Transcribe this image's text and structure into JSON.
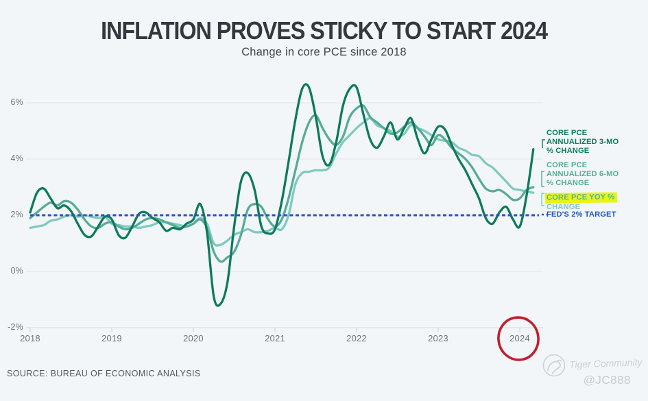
{
  "header": {
    "title": "INFLATION PROVES STICKY TO START 2024",
    "subtitle": "Change in core PCE since 2018"
  },
  "footer": {
    "source": "SOURCE: BUREAU OF ECONOMIC ANALYSIS"
  },
  "watermark": {
    "community": "Tiger Community",
    "handle": "@JC888"
  },
  "legend": {
    "core3mo": {
      "l1": "CORE PCE",
      "l2": "ANNUALIZED 3-MO",
      "l3": "% CHANGE",
      "color": "#0d7a5b"
    },
    "core6mo": {
      "l1": "CORE PCE",
      "l2": "ANNUALIZED 6-MO",
      "l3": "% CHANGE",
      "color": "#57ab99"
    },
    "coreyoy": {
      "l1": "CORE PCE YOY %",
      "l2": "CHANGE",
      "color": "#7ecac0",
      "highlight_color": "#e9f411"
    },
    "fedtarget": {
      "label": "FED'S 2% TARGET",
      "color": "#2356c0"
    }
  },
  "chart_data": {
    "type": "line",
    "title": "INFLATION PROVES STICKY TO START 2024",
    "subtitle": "Change in core PCE since 2018",
    "x_unit": "month",
    "x_start": "2018-01",
    "x_end": "2024-03",
    "x_ticks": [
      "2018",
      "2019",
      "2020",
      "2021",
      "2022",
      "2023",
      "2024"
    ],
    "y_ticks": [
      "6%",
      "4%",
      "2%",
      "0%",
      "-2%"
    ],
    "y_tick_values": [
      6,
      4,
      2,
      0,
      -2
    ],
    "ylim": [
      -2.2,
      7
    ],
    "grid": true,
    "legend_position": "right",
    "annotations": [
      {
        "type": "hand-drawn-circle",
        "target": "2024",
        "color": "#c11f2e"
      },
      {
        "type": "marker-highlight",
        "target": "CORE PCE YOY % CHANGE legend",
        "color": "#e9f411"
      }
    ],
    "series": [
      {
        "name": "Core PCE YoY % change",
        "color": "#7ecac0",
        "values": [
          1.55,
          1.6,
          1.65,
          1.8,
          1.85,
          1.95,
          2.0,
          1.95,
          2.0,
          1.95,
          1.9,
          1.95,
          1.7,
          1.65,
          1.6,
          1.6,
          1.55,
          1.6,
          1.65,
          1.75,
          1.75,
          1.7,
          1.65,
          1.6,
          1.7,
          1.9,
          1.7,
          1.0,
          0.95,
          1.1,
          1.3,
          1.4,
          1.5,
          1.4,
          1.4,
          1.45,
          1.55,
          1.5,
          2.0,
          3.1,
          3.5,
          3.55,
          3.6,
          3.6,
          3.7,
          4.2,
          4.6,
          4.85,
          5.1,
          5.3,
          5.45,
          5.2,
          5.1,
          5.0,
          4.8,
          4.9,
          5.2,
          5.1,
          5.0,
          4.85,
          4.7,
          4.65,
          4.6,
          4.4,
          4.3,
          4.15,
          4.1,
          3.85,
          3.7,
          3.45,
          3.2,
          2.95,
          2.9,
          2.85,
          2.8
        ]
      },
      {
        "name": "Core PCE annualized 6-mo % change",
        "color": "#57ab99",
        "values": [
          1.9,
          2.1,
          2.3,
          2.45,
          2.35,
          2.5,
          2.45,
          2.2,
          1.85,
          1.6,
          1.55,
          1.7,
          1.75,
          1.6,
          1.5,
          1.55,
          1.7,
          1.85,
          1.9,
          1.85,
          1.75,
          1.65,
          1.55,
          1.6,
          1.7,
          1.85,
          1.55,
          0.7,
          0.35,
          0.5,
          0.7,
          1.3,
          2.2,
          2.4,
          2.3,
          1.85,
          1.6,
          1.85,
          2.6,
          3.6,
          4.6,
          5.3,
          5.55,
          5.1,
          4.7,
          4.5,
          4.8,
          5.5,
          5.8,
          5.9,
          5.5,
          5.3,
          5.1,
          4.9,
          4.95,
          5.15,
          5.3,
          5.1,
          4.8,
          4.5,
          4.85,
          4.7,
          4.4,
          4.2,
          4.0,
          3.7,
          3.3,
          2.95,
          2.85,
          2.9,
          2.75,
          2.55,
          2.6,
          2.9,
          3.0
        ]
      },
      {
        "name": "Core PCE annualized 3-mo % change",
        "color": "#0d7a5b",
        "values": [
          2.1,
          2.8,
          2.95,
          2.6,
          2.25,
          2.35,
          2.15,
          1.7,
          1.3,
          1.25,
          1.6,
          1.95,
          1.85,
          1.3,
          1.2,
          1.6,
          2.05,
          2.1,
          1.9,
          1.75,
          1.45,
          1.55,
          1.5,
          1.7,
          1.85,
          2.4,
          1.4,
          -0.9,
          -1.15,
          -0.4,
          1.6,
          3.2,
          3.5,
          2.9,
          1.6,
          1.35,
          1.5,
          2.5,
          3.9,
          5.4,
          6.5,
          6.55,
          5.5,
          4.1,
          3.8,
          4.6,
          5.9,
          6.5,
          6.55,
          5.6,
          4.7,
          4.4,
          4.8,
          5.3,
          4.7,
          5.1,
          5.45,
          4.7,
          4.2,
          4.7,
          5.15,
          5.05,
          4.5,
          4.0,
          3.6,
          3.1,
          2.6,
          1.9,
          1.7,
          2.1,
          2.3,
          1.85,
          1.6,
          2.7,
          4.35
        ]
      },
      {
        "name": "Fed's 2% target",
        "color": "#2b51c1",
        "style": "dotted",
        "constant": 2
      }
    ]
  }
}
